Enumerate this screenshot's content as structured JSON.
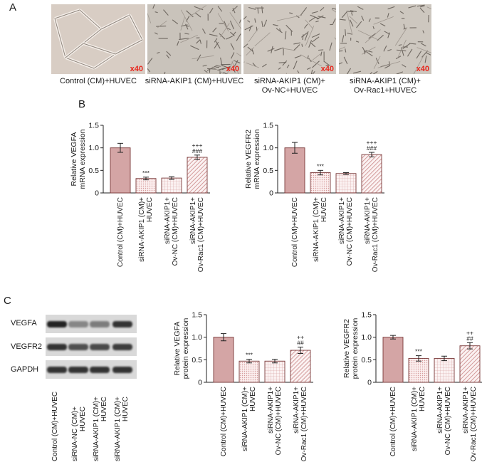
{
  "panels": {
    "a": "A",
    "b": "B",
    "c": "C"
  },
  "micrographs": [
    {
      "caption": [
        "Control (CM)+HUVEC"
      ],
      "magnification": "x40",
      "tone": "#d8cdc4"
    },
    {
      "caption": [
        "siRNA-AKIP1 (CM)+HUVEC"
      ],
      "magnification": "x40",
      "tone": "#c9c3bb"
    },
    {
      "caption": [
        "siRNA-AKIP1 (CM)+",
        "Ov-NC+HUVEC"
      ],
      "magnification": "x40",
      "tone": "#cfc8c0"
    },
    {
      "caption": [
        "siRNA-AKIP1 (CM)+",
        "Ov-Rac1+HUVEC"
      ],
      "magnification": "x40",
      "tone": "#cdc7bf"
    }
  ],
  "colors": {
    "bar_fill": "#d4a5a5",
    "bar_stroke": "#7a3a3a",
    "dots": "#d49a9a",
    "hatch": "#c98585"
  },
  "western_blot": {
    "bands": [
      "VEGFA",
      "VEGFR2",
      "GAPDH"
    ],
    "lanes": [
      [
        "Control (CM)+HUVEC"
      ],
      [
        "siRNA-NC (CM)+",
        "HUVEC"
      ],
      [
        "siRNA-AKIP1 (CM)+",
        "HUVEC"
      ],
      [
        "siRNA-AKIP1 (CM)+",
        "HUVEC"
      ]
    ],
    "intensity": [
      [
        1.0,
        0.45,
        0.5,
        0.9
      ],
      [
        0.9,
        0.75,
        0.78,
        0.85
      ],
      [
        0.9,
        0.9,
        0.9,
        0.9
      ]
    ]
  },
  "chart_data": [
    {
      "type": "bar",
      "ylabel": [
        "Relative VEGFA",
        "mRNA expression"
      ],
      "ylim": [
        0,
        1.5
      ],
      "yticks": [
        "0",
        "0.5",
        "1.0",
        "1.5"
      ],
      "categories": [
        [
          "Control (CM)+HUVEC"
        ],
        [
          "siRNA-AKIP1 (CM)+",
          "HUVEC"
        ],
        [
          "siRNA-AKIP1+",
          "Ov-NC (CM)+HUVEC"
        ],
        [
          "siRNA-AKIP1+",
          "Ov-Rac1 (CM)+HUVEC"
        ]
      ],
      "values": [
        1.0,
        0.32,
        0.33,
        0.79
      ],
      "errors": [
        0.1,
        0.03,
        0.03,
        0.05
      ],
      "patterns": [
        "solid",
        "dots",
        "grid",
        "hatch"
      ],
      "annotations": [
        [],
        [
          "***"
        ],
        [],
        [
          "###",
          "+++"
        ]
      ]
    },
    {
      "type": "bar",
      "ylabel": [
        "Relative VEGFR2",
        "mRNA expression"
      ],
      "ylim": [
        0,
        1.5
      ],
      "yticks": [
        "0",
        "0.5",
        "1.0",
        "1.5"
      ],
      "categories": [
        [
          "Control (CM)+HUVEC"
        ],
        [
          "siRNA-AKIP1 (CM)+",
          "HUVEC"
        ],
        [
          "siRNA-AKIP1+",
          "Ov-NC (CM)+HUVEC"
        ],
        [
          "siRNA-AKIP1+",
          "Ov-Rac1 (CM)+HUVEC"
        ]
      ],
      "values": [
        1.0,
        0.45,
        0.43,
        0.85
      ],
      "errors": [
        0.12,
        0.05,
        0.02,
        0.05
      ],
      "patterns": [
        "solid",
        "dots",
        "grid",
        "hatch"
      ],
      "annotations": [
        [],
        [
          "***"
        ],
        [],
        [
          "###",
          "+++"
        ]
      ]
    },
    {
      "type": "bar",
      "ylabel": [
        "Relative VEGFA",
        "protein expression"
      ],
      "ylim": [
        0,
        1.5
      ],
      "yticks": [
        "0",
        "0.5",
        "1.0",
        "1.5"
      ],
      "categories": [
        [
          "Control (CM)+HUVEC"
        ],
        [
          "siRNA-AKIP1 (CM)+",
          "HUVEC"
        ],
        [
          "siRNA-AKIP1+",
          "Ov-NC (CM)+HUVEC"
        ],
        [
          "siRNA-AKIP1+",
          "Ov-Rac1 (CM)+HUVEC"
        ]
      ],
      "values": [
        1.0,
        0.47,
        0.47,
        0.71
      ],
      "errors": [
        0.08,
        0.04,
        0.04,
        0.07
      ],
      "patterns": [
        "solid",
        "dots",
        "grid",
        "hatch"
      ],
      "annotations": [
        [],
        [
          "***"
        ],
        [],
        [
          "##",
          "++"
        ]
      ]
    },
    {
      "type": "bar",
      "ylabel": [
        "Relative VEGFR2",
        "protein expression"
      ],
      "ylim": [
        0,
        1.5
      ],
      "yticks": [
        "0",
        "0.5",
        "1.0",
        "1.5"
      ],
      "categories": [
        [
          "Control (CM)+HUVEC"
        ],
        [
          "siRNA-AKIP1 (CM)+",
          "HUVEC"
        ],
        [
          "siRNA-AKIP1+",
          "Ov-NC (CM)+HUVEC"
        ],
        [
          "siRNA-AKIP1+",
          "Ov-Rac1 (CM)+HUVEC"
        ]
      ],
      "values": [
        1.0,
        0.53,
        0.53,
        0.81
      ],
      "errors": [
        0.04,
        0.06,
        0.05,
        0.07
      ],
      "patterns": [
        "solid",
        "dots",
        "grid",
        "hatch"
      ],
      "annotations": [
        [],
        [
          "***"
        ],
        [],
        [
          "##",
          "++"
        ]
      ]
    }
  ]
}
